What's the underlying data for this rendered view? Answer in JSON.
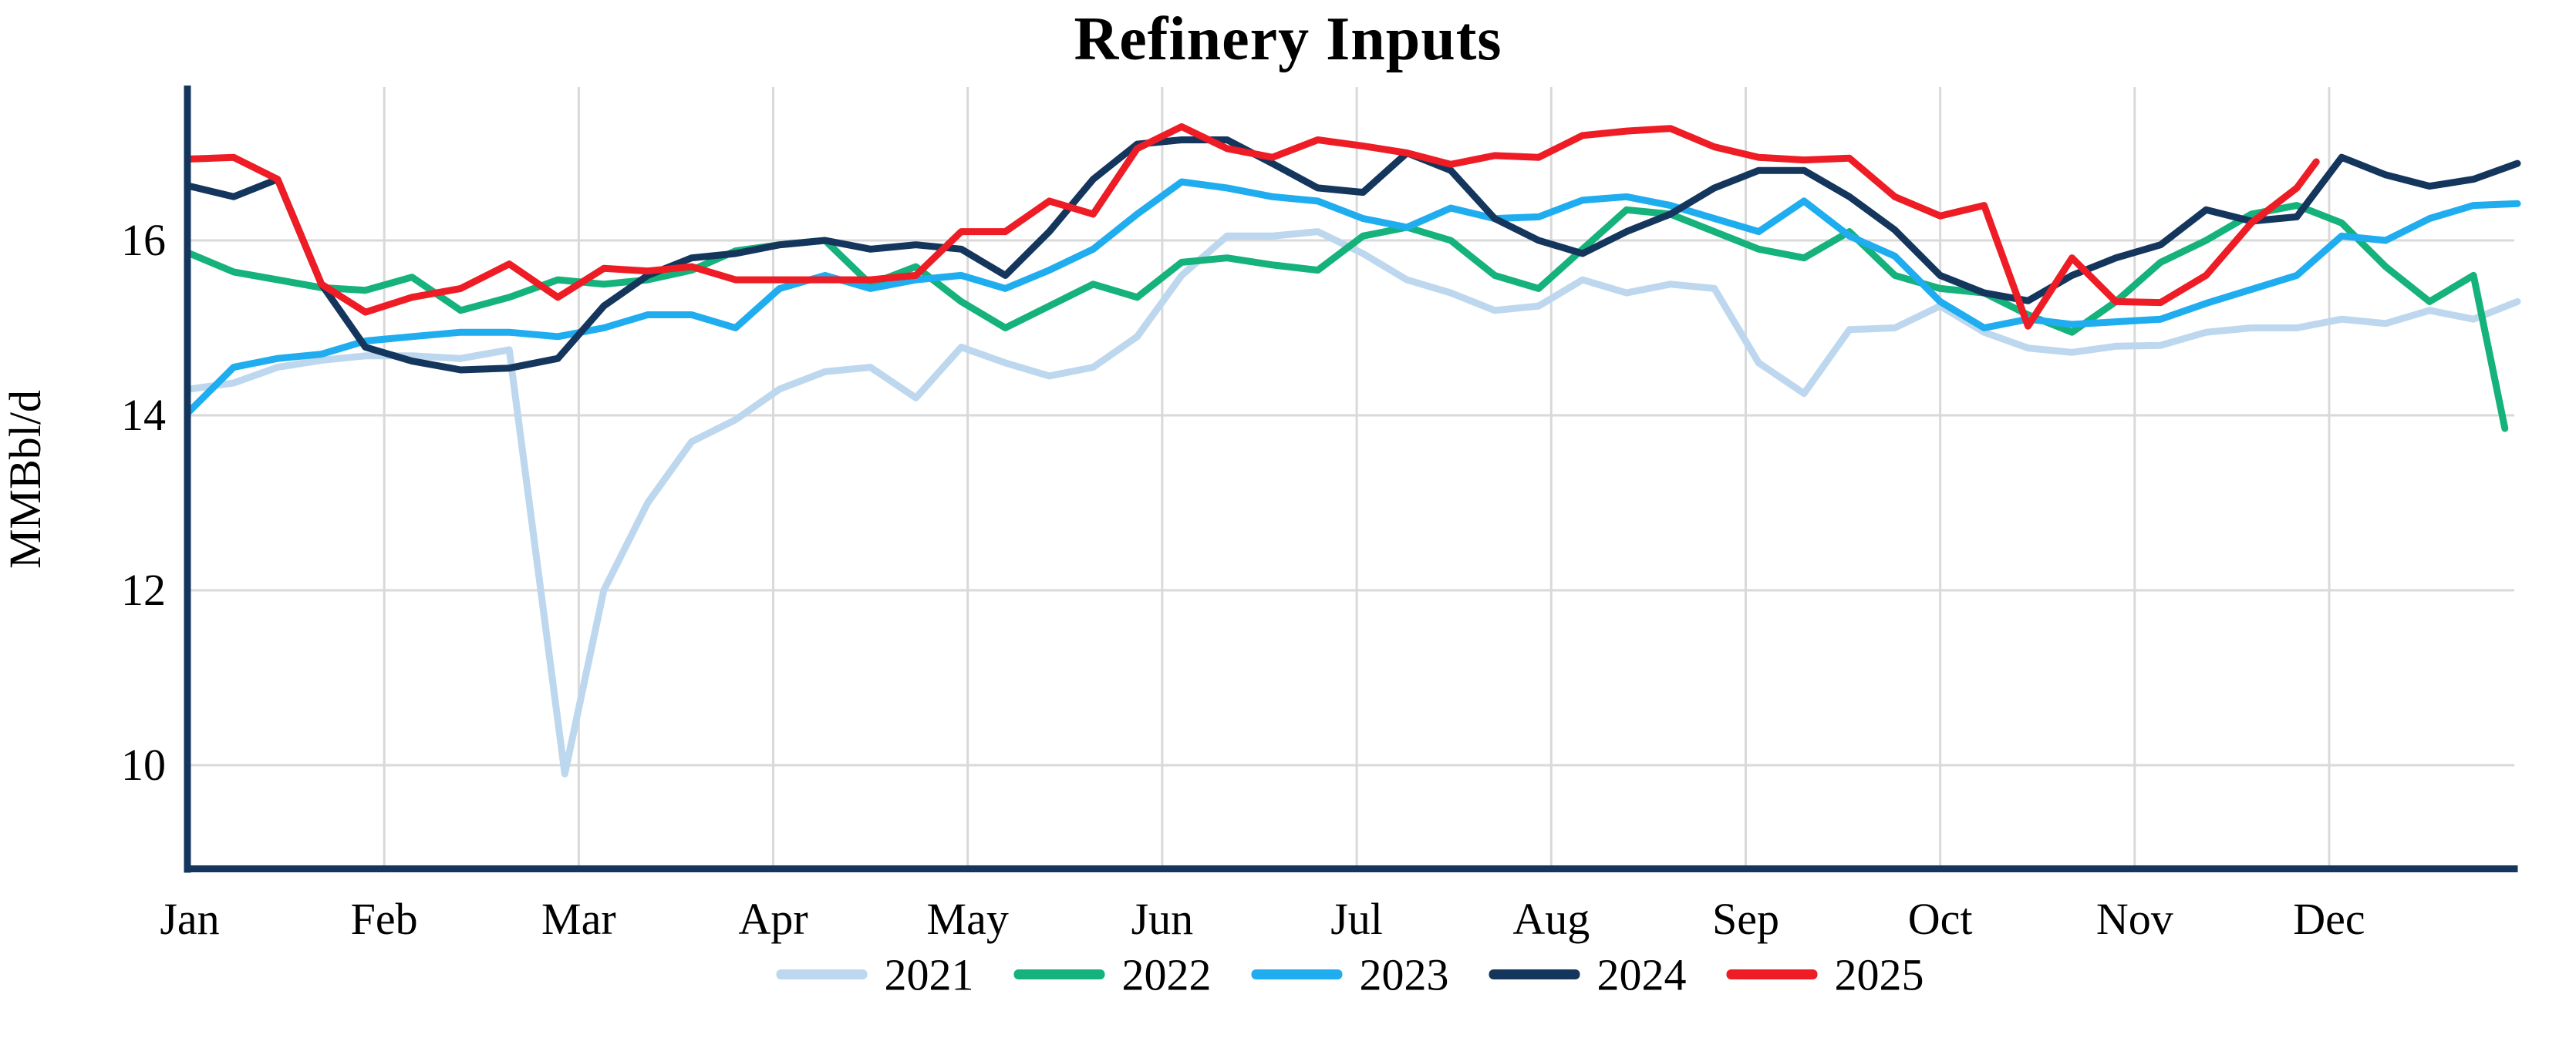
{
  "chart_data": {
    "type": "line",
    "title": "Refinery Inputs",
    "ylabel": "MMBbl/d",
    "x_axis": {
      "tick_labels": [
        "Jan",
        "Feb",
        "Mar",
        "Apr",
        "May",
        "Jun",
        "Jul",
        "Aug",
        "Sep",
        "Oct",
        "Nov",
        "Dec"
      ],
      "unit": "day_of_year",
      "range": [
        1,
        366
      ]
    },
    "y_axis": {
      "ticks": [
        10,
        12,
        14,
        16
      ],
      "range": [
        8.8,
        17.75
      ],
      "gridlines": true
    },
    "legend": {
      "position": "bottom",
      "entries": [
        "2021",
        "2022",
        "2023",
        "2024",
        "2025"
      ]
    },
    "colors": {
      "axis": "#14365d",
      "gridline": "#d9d9d9",
      "text": "#000000"
    },
    "series": [
      {
        "name": "2021",
        "color": "#bdd7ee",
        "points": [
          [
            1,
            14.3
          ],
          [
            8,
            14.37
          ],
          [
            15,
            14.55
          ],
          [
            22,
            14.63
          ],
          [
            29,
            14.68
          ],
          [
            36,
            14.68
          ],
          [
            43,
            14.65
          ],
          [
            50,
            14.75
          ],
          [
            58,
            9.9
          ],
          [
            64,
            12.0
          ],
          [
            71,
            13.0
          ],
          [
            78,
            13.7
          ],
          [
            85,
            13.95
          ],
          [
            92,
            14.3
          ],
          [
            99,
            14.5
          ],
          [
            106,
            14.55
          ],
          [
            113,
            14.2
          ],
          [
            120,
            14.78
          ],
          [
            127,
            14.6
          ],
          [
            134,
            14.45
          ],
          [
            141,
            14.55
          ],
          [
            148,
            14.9
          ],
          [
            155,
            15.6
          ],
          [
            162,
            16.05
          ],
          [
            169,
            16.05
          ],
          [
            176,
            16.1
          ],
          [
            183,
            15.85
          ],
          [
            190,
            15.55
          ],
          [
            197,
            15.4
          ],
          [
            204,
            15.2
          ],
          [
            211,
            15.25
          ],
          [
            218,
            15.55
          ],
          [
            225,
            15.4
          ],
          [
            232,
            15.5
          ],
          [
            239,
            15.45
          ],
          [
            246,
            14.6
          ],
          [
            253,
            14.25
          ],
          [
            260,
            14.98
          ],
          [
            267,
            15.0
          ],
          [
            274,
            15.25
          ],
          [
            281,
            14.95
          ],
          [
            288,
            14.77
          ],
          [
            295,
            14.72
          ],
          [
            302,
            14.79
          ],
          [
            309,
            14.8
          ],
          [
            316,
            14.95
          ],
          [
            323,
            15.0
          ],
          [
            330,
            15.0
          ],
          [
            337,
            15.1
          ],
          [
            344,
            15.05
          ],
          [
            351,
            15.2
          ],
          [
            358,
            15.1
          ],
          [
            365,
            15.3
          ]
        ]
      },
      {
        "name": "2022",
        "color": "#15b27b",
        "points": [
          [
            1,
            15.85
          ],
          [
            8,
            15.64
          ],
          [
            15,
            15.55
          ],
          [
            22,
            15.46
          ],
          [
            29,
            15.43
          ],
          [
            36,
            15.58
          ],
          [
            43,
            15.2
          ],
          [
            50,
            15.35
          ],
          [
            57,
            15.55
          ],
          [
            64,
            15.5
          ],
          [
            71,
            15.55
          ],
          [
            78,
            15.66
          ],
          [
            85,
            15.88
          ],
          [
            92,
            15.95
          ],
          [
            99,
            16.0
          ],
          [
            106,
            15.5
          ],
          [
            113,
            15.7
          ],
          [
            120,
            15.3
          ],
          [
            127,
            15.0
          ],
          [
            134,
            15.25
          ],
          [
            141,
            15.5
          ],
          [
            148,
            15.35
          ],
          [
            155,
            15.75
          ],
          [
            162,
            15.8
          ],
          [
            169,
            15.72
          ],
          [
            176,
            15.66
          ],
          [
            183,
            16.05
          ],
          [
            190,
            16.15
          ],
          [
            197,
            16.0
          ],
          [
            204,
            15.6
          ],
          [
            211,
            15.45
          ],
          [
            218,
            15.9
          ],
          [
            225,
            16.35
          ],
          [
            232,
            16.3
          ],
          [
            239,
            16.1
          ],
          [
            246,
            15.9
          ],
          [
            253,
            15.8
          ],
          [
            260,
            16.1
          ],
          [
            267,
            15.6
          ],
          [
            274,
            15.45
          ],
          [
            281,
            15.4
          ],
          [
            288,
            15.15
          ],
          [
            295,
            14.95
          ],
          [
            302,
            15.3
          ],
          [
            309,
            15.75
          ],
          [
            316,
            16.0
          ],
          [
            323,
            16.3
          ],
          [
            330,
            16.4
          ],
          [
            337,
            16.2
          ],
          [
            344,
            15.7
          ],
          [
            351,
            15.3
          ],
          [
            358,
            15.6
          ],
          [
            363,
            13.85
          ]
        ]
      },
      {
        "name": "2023",
        "color": "#1fadf0",
        "points": [
          [
            1,
            14.05
          ],
          [
            8,
            14.55
          ],
          [
            15,
            14.65
          ],
          [
            22,
            14.7
          ],
          [
            29,
            14.85
          ],
          [
            36,
            14.9
          ],
          [
            43,
            14.95
          ],
          [
            50,
            14.95
          ],
          [
            57,
            14.9
          ],
          [
            64,
            15.0
          ],
          [
            71,
            15.15
          ],
          [
            78,
            15.15
          ],
          [
            85,
            15.0
          ],
          [
            92,
            15.45
          ],
          [
            99,
            15.6
          ],
          [
            106,
            15.45
          ],
          [
            113,
            15.55
          ],
          [
            120,
            15.6
          ],
          [
            127,
            15.45
          ],
          [
            134,
            15.66
          ],
          [
            141,
            15.9
          ],
          [
            148,
            16.3
          ],
          [
            155,
            16.67
          ],
          [
            162,
            16.6
          ],
          [
            169,
            16.5
          ],
          [
            176,
            16.45
          ],
          [
            183,
            16.25
          ],
          [
            190,
            16.15
          ],
          [
            197,
            16.37
          ],
          [
            204,
            16.25
          ],
          [
            211,
            16.27
          ],
          [
            218,
            16.46
          ],
          [
            225,
            16.5
          ],
          [
            232,
            16.4
          ],
          [
            239,
            16.25
          ],
          [
            246,
            16.1
          ],
          [
            253,
            16.45
          ],
          [
            260,
            16.05
          ],
          [
            267,
            15.82
          ],
          [
            274,
            15.3
          ],
          [
            281,
            15.0
          ],
          [
            288,
            15.1
          ],
          [
            295,
            15.04
          ],
          [
            302,
            15.07
          ],
          [
            309,
            15.1
          ],
          [
            316,
            15.28
          ],
          [
            323,
            15.44
          ],
          [
            330,
            15.6
          ],
          [
            337,
            16.05
          ],
          [
            344,
            16.0
          ],
          [
            351,
            16.25
          ],
          [
            358,
            16.4
          ],
          [
            365,
            16.42
          ]
        ]
      },
      {
        "name": "2024",
        "color": "#14365d",
        "points": [
          [
            1,
            16.62
          ],
          [
            8,
            16.5
          ],
          [
            15,
            16.7
          ],
          [
            22,
            15.5
          ],
          [
            29,
            14.78
          ],
          [
            36,
            14.62
          ],
          [
            43,
            14.52
          ],
          [
            50,
            14.54
          ],
          [
            57,
            14.65
          ],
          [
            64,
            15.25
          ],
          [
            71,
            15.6
          ],
          [
            78,
            15.8
          ],
          [
            85,
            15.85
          ],
          [
            92,
            15.95
          ],
          [
            99,
            16.0
          ],
          [
            106,
            15.9
          ],
          [
            113,
            15.95
          ],
          [
            120,
            15.9
          ],
          [
            127,
            15.6
          ],
          [
            134,
            16.1
          ],
          [
            141,
            16.7
          ],
          [
            148,
            17.1
          ],
          [
            155,
            17.15
          ],
          [
            162,
            17.15
          ],
          [
            169,
            16.88
          ],
          [
            176,
            16.6
          ],
          [
            183,
            16.55
          ],
          [
            190,
            17.0
          ],
          [
            197,
            16.8
          ],
          [
            204,
            16.25
          ],
          [
            211,
            16.0
          ],
          [
            218,
            15.85
          ],
          [
            225,
            16.1
          ],
          [
            232,
            16.3
          ],
          [
            239,
            16.6
          ],
          [
            246,
            16.8
          ],
          [
            253,
            16.8
          ],
          [
            260,
            16.5
          ],
          [
            267,
            16.12
          ],
          [
            274,
            15.6
          ],
          [
            281,
            15.4
          ],
          [
            288,
            15.31
          ],
          [
            295,
            15.6
          ],
          [
            302,
            15.8
          ],
          [
            309,
            15.95
          ],
          [
            316,
            16.35
          ],
          [
            323,
            16.22
          ],
          [
            330,
            16.27
          ],
          [
            337,
            16.95
          ],
          [
            344,
            16.75
          ],
          [
            351,
            16.62
          ],
          [
            358,
            16.7
          ],
          [
            365,
            16.88
          ]
        ]
      },
      {
        "name": "2025",
        "color": "#ee1c25",
        "points": [
          [
            1,
            16.93
          ],
          [
            8,
            16.95
          ],
          [
            15,
            16.7
          ],
          [
            22,
            15.5
          ],
          [
            29,
            15.18
          ],
          [
            36,
            15.35
          ],
          [
            43,
            15.45
          ],
          [
            50,
            15.73
          ],
          [
            57,
            15.35
          ],
          [
            64,
            15.68
          ],
          [
            71,
            15.65
          ],
          [
            78,
            15.7
          ],
          [
            85,
            15.55
          ],
          [
            92,
            15.55
          ],
          [
            99,
            15.55
          ],
          [
            106,
            15.55
          ],
          [
            113,
            15.6
          ],
          [
            120,
            16.1
          ],
          [
            127,
            16.1
          ],
          [
            134,
            16.45
          ],
          [
            141,
            16.3
          ],
          [
            148,
            17.05
          ],
          [
            155,
            17.3
          ],
          [
            162,
            17.05
          ],
          [
            169,
            16.95
          ],
          [
            176,
            17.15
          ],
          [
            183,
            17.08
          ],
          [
            190,
            17.0
          ],
          [
            197,
            16.87
          ],
          [
            204,
            16.97
          ],
          [
            211,
            16.95
          ],
          [
            218,
            17.2
          ],
          [
            225,
            17.25
          ],
          [
            232,
            17.28
          ],
          [
            239,
            17.07
          ],
          [
            246,
            16.95
          ],
          [
            253,
            16.92
          ],
          [
            260,
            16.94
          ],
          [
            267,
            16.5
          ],
          [
            274,
            16.28
          ],
          [
            281,
            16.4
          ],
          [
            288,
            15.02
          ],
          [
            295,
            15.8
          ],
          [
            302,
            15.3
          ],
          [
            309,
            15.29
          ],
          [
            316,
            15.6
          ],
          [
            323,
            16.2
          ],
          [
            330,
            16.6
          ],
          [
            333,
            16.9
          ]
        ]
      }
    ]
  }
}
